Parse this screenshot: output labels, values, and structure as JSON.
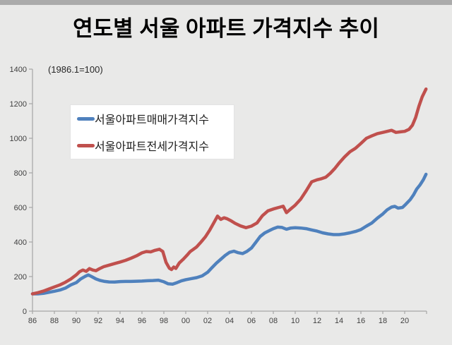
{
  "slide": {
    "background_color": "#E9E9E8",
    "topbar_color": "#ABABAB"
  },
  "header": {
    "title": "연도별 서울 아파트 가격지수 추이"
  },
  "chart_data": {
    "type": "line",
    "title": "연도별 서울 아파트 가격지수 추이",
    "annotation": "(1986.1=100)",
    "grid": false,
    "legend_position": "upper-left-inside",
    "axis_color": "#A6A6A6",
    "tick_label_color": "#3f3f3f",
    "x_axis": {
      "range": [
        1986,
        2022
      ],
      "tick_years": [
        1986,
        1988,
        1990,
        1992,
        1994,
        1996,
        1998,
        2000,
        2002,
        2004,
        2006,
        2008,
        2010,
        2012,
        2014,
        2016,
        2018,
        2020,
        2022
      ],
      "tick_labels": [
        "86",
        "88",
        "90",
        "92",
        "94",
        "96",
        "98",
        "00",
        "02",
        "04",
        "06",
        "08",
        "10",
        "12",
        "14",
        "16",
        "18",
        "20",
        ""
      ]
    },
    "y_axis": {
      "range": [
        0,
        1400
      ],
      "ticks": [
        0,
        200,
        400,
        600,
        800,
        1000,
        1200,
        1400
      ]
    },
    "series": [
      {
        "name": "서울아파트매매가격지수",
        "color": "#4F81BD",
        "points": [
          [
            1986.0,
            100
          ],
          [
            1986.5,
            100
          ],
          [
            1987.0,
            103
          ],
          [
            1987.5,
            109
          ],
          [
            1988.0,
            115
          ],
          [
            1988.5,
            122
          ],
          [
            1989.0,
            133
          ],
          [
            1989.5,
            152
          ],
          [
            1990.0,
            165
          ],
          [
            1990.4,
            186
          ],
          [
            1990.8,
            201
          ],
          [
            1991.1,
            210
          ],
          [
            1991.4,
            200
          ],
          [
            1991.8,
            186
          ],
          [
            1992.2,
            177
          ],
          [
            1992.6,
            172
          ],
          [
            1993.0,
            169
          ],
          [
            1993.5,
            168
          ],
          [
            1994.0,
            171
          ],
          [
            1994.5,
            172
          ],
          [
            1995.0,
            172
          ],
          [
            1995.5,
            173
          ],
          [
            1996.0,
            174
          ],
          [
            1996.5,
            176
          ],
          [
            1997.0,
            177
          ],
          [
            1997.5,
            179
          ],
          [
            1998.0,
            170
          ],
          [
            1998.4,
            158
          ],
          [
            1998.8,
            156
          ],
          [
            1999.2,
            165
          ],
          [
            1999.6,
            175
          ],
          [
            2000.0,
            182
          ],
          [
            2000.5,
            188
          ],
          [
            2001.0,
            194
          ],
          [
            2001.5,
            204
          ],
          [
            2002.0,
            225
          ],
          [
            2002.4,
            252
          ],
          [
            2002.8,
            278
          ],
          [
            2003.2,
            300
          ],
          [
            2003.6,
            322
          ],
          [
            2004.0,
            340
          ],
          [
            2004.4,
            347
          ],
          [
            2004.8,
            338
          ],
          [
            2005.2,
            333
          ],
          [
            2005.6,
            346
          ],
          [
            2006.0,
            365
          ],
          [
            2006.4,
            398
          ],
          [
            2006.8,
            432
          ],
          [
            2007.2,
            452
          ],
          [
            2007.6,
            465
          ],
          [
            2008.0,
            477
          ],
          [
            2008.4,
            486
          ],
          [
            2008.8,
            484
          ],
          [
            2009.2,
            474
          ],
          [
            2009.6,
            481
          ],
          [
            2010.0,
            483
          ],
          [
            2010.5,
            481
          ],
          [
            2011.0,
            477
          ],
          [
            2011.5,
            470
          ],
          [
            2012.0,
            463
          ],
          [
            2012.5,
            453
          ],
          [
            2013.0,
            447
          ],
          [
            2013.5,
            443
          ],
          [
            2014.0,
            443
          ],
          [
            2014.5,
            447
          ],
          [
            2015.0,
            453
          ],
          [
            2015.5,
            461
          ],
          [
            2016.0,
            472
          ],
          [
            2016.5,
            492
          ],
          [
            2017.0,
            510
          ],
          [
            2017.5,
            538
          ],
          [
            2018.0,
            562
          ],
          [
            2018.4,
            586
          ],
          [
            2018.8,
            602
          ],
          [
            2019.1,
            606
          ],
          [
            2019.4,
            596
          ],
          [
            2019.8,
            600
          ],
          [
            2020.1,
            618
          ],
          [
            2020.5,
            645
          ],
          [
            2020.8,
            672
          ],
          [
            2021.1,
            706
          ],
          [
            2021.4,
            730
          ],
          [
            2021.7,
            760
          ],
          [
            2021.95,
            792
          ]
        ]
      },
      {
        "name": "서울아파트전세가격지수",
        "color": "#C0504D",
        "points": [
          [
            1986.0,
            100
          ],
          [
            1986.5,
            107
          ],
          [
            1987.0,
            116
          ],
          [
            1987.5,
            128
          ],
          [
            1988.0,
            140
          ],
          [
            1988.5,
            152
          ],
          [
            1989.0,
            167
          ],
          [
            1989.5,
            186
          ],
          [
            1990.0,
            210
          ],
          [
            1990.3,
            228
          ],
          [
            1990.6,
            238
          ],
          [
            1990.9,
            230
          ],
          [
            1991.2,
            246
          ],
          [
            1991.5,
            238
          ],
          [
            1991.8,
            234
          ],
          [
            1992.1,
            245
          ],
          [
            1992.5,
            257
          ],
          [
            1993.0,
            266
          ],
          [
            1993.5,
            275
          ],
          [
            1994.0,
            284
          ],
          [
            1994.5,
            294
          ],
          [
            1995.0,
            306
          ],
          [
            1995.5,
            320
          ],
          [
            1996.0,
            337
          ],
          [
            1996.4,
            345
          ],
          [
            1996.8,
            343
          ],
          [
            1997.2,
            352
          ],
          [
            1997.6,
            358
          ],
          [
            1997.9,
            345
          ],
          [
            1998.2,
            282
          ],
          [
            1998.5,
            248
          ],
          [
            1998.7,
            241
          ],
          [
            1998.9,
            255
          ],
          [
            1999.1,
            247
          ],
          [
            1999.4,
            278
          ],
          [
            1999.8,
            302
          ],
          [
            2000.1,
            322
          ],
          [
            2000.4,
            344
          ],
          [
            2000.7,
            358
          ],
          [
            2001.0,
            372
          ],
          [
            2001.4,
            400
          ],
          [
            2001.8,
            430
          ],
          [
            2002.2,
            470
          ],
          [
            2002.6,
            515
          ],
          [
            2002.9,
            550
          ],
          [
            2003.2,
            531
          ],
          [
            2003.5,
            540
          ],
          [
            2003.8,
            534
          ],
          [
            2004.1,
            524
          ],
          [
            2004.5,
            508
          ],
          [
            2005.0,
            493
          ],
          [
            2005.5,
            483
          ],
          [
            2006.0,
            492
          ],
          [
            2006.5,
            510
          ],
          [
            2007.0,
            552
          ],
          [
            2007.5,
            580
          ],
          [
            2008.0,
            591
          ],
          [
            2008.5,
            600
          ],
          [
            2008.9,
            607
          ],
          [
            2009.2,
            570
          ],
          [
            2009.6,
            592
          ],
          [
            2010.0,
            613
          ],
          [
            2010.5,
            648
          ],
          [
            2011.0,
            696
          ],
          [
            2011.5,
            748
          ],
          [
            2012.0,
            760
          ],
          [
            2012.4,
            766
          ],
          [
            2012.8,
            775
          ],
          [
            2013.2,
            797
          ],
          [
            2013.6,
            824
          ],
          [
            2014.0,
            856
          ],
          [
            2014.5,
            892
          ],
          [
            2015.0,
            922
          ],
          [
            2015.5,
            942
          ],
          [
            2016.0,
            970
          ],
          [
            2016.5,
            1000
          ],
          [
            2017.0,
            1014
          ],
          [
            2017.5,
            1027
          ],
          [
            2018.0,
            1034
          ],
          [
            2018.4,
            1040
          ],
          [
            2018.8,
            1046
          ],
          [
            2019.2,
            1034
          ],
          [
            2019.6,
            1037
          ],
          [
            2020.0,
            1040
          ],
          [
            2020.4,
            1052
          ],
          [
            2020.7,
            1075
          ],
          [
            2021.0,
            1120
          ],
          [
            2021.3,
            1185
          ],
          [
            2021.6,
            1240
          ],
          [
            2021.95,
            1285
          ]
        ]
      }
    ]
  }
}
